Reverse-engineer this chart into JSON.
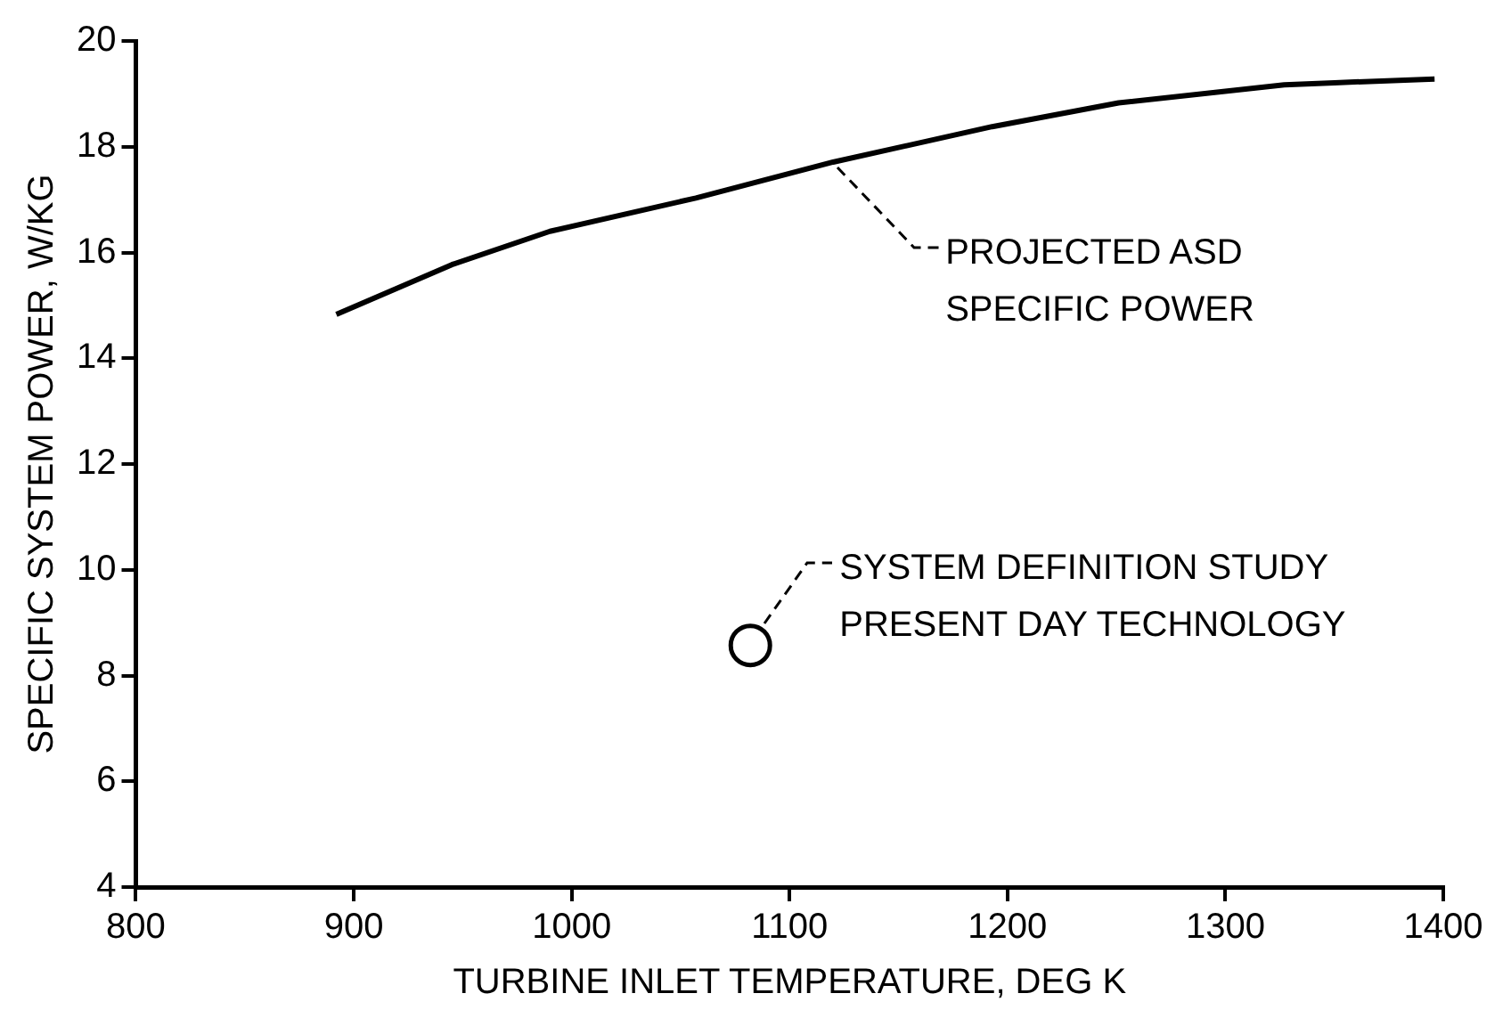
{
  "chart_data": {
    "type": "line",
    "xlabel": "TURBINE INLET TEMPERATURE, DEG K",
    "ylabel": "SPECIFIC SYSTEM POWER, W/KG",
    "series": [
      {
        "type": "line",
        "color": "#000000",
        "marker": "none",
        "x": [
          892,
          945,
          990,
          1057,
          1120,
          1193,
          1251,
          1327,
          1350,
          1396
        ],
        "values": [
          14.83,
          15.77,
          16.4,
          17.03,
          17.71,
          18.38,
          18.83,
          19.17,
          19.21,
          19.28
        ]
      },
      {
        "type": "scatter",
        "color": "#000000",
        "marker": "circle",
        "x": [
          1082
        ],
        "values": [
          8.57
        ]
      }
    ],
    "xlim": [
      800,
      1400
    ],
    "xticks": [
      800,
      900,
      1000,
      1100,
      1200,
      1300,
      1400
    ],
    "ylim": [
      4,
      20
    ],
    "yticks": [
      4,
      6,
      8,
      10,
      12,
      14,
      16,
      18,
      20
    ],
    "grid": false,
    "legend": false,
    "annotations": [
      {
        "text": "PROJECTED ASD\nSPECIFIC POWER",
        "x": 1120,
        "y": 17.71
      },
      {
        "text": "SYSTEM DEFINITION STUDY\nPRESENT DAY TECHNOLOGY",
        "x": 1082,
        "y": 8.57
      }
    ]
  }
}
